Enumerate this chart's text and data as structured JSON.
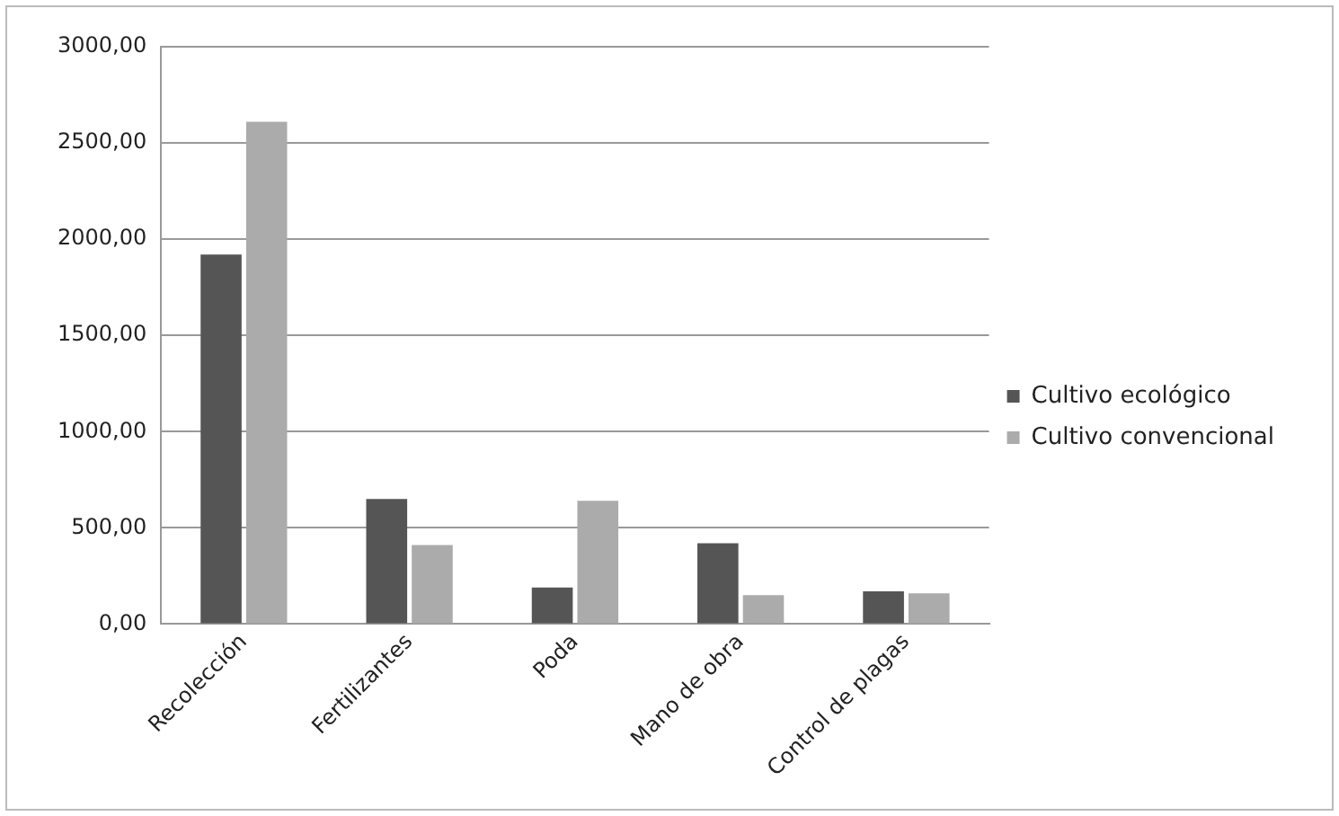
{
  "chart_data": {
    "type": "bar",
    "categories": [
      "Recolección",
      "Fertilizantes",
      "Poda",
      "Mano de obra",
      "Control de plagas"
    ],
    "series": [
      {
        "name": "Cultivo ecológico",
        "color": "#555555",
        "values": [
          1920,
          650,
          190,
          420,
          170
        ]
      },
      {
        "name": "Cultivo convencional",
        "color": "#ababab",
        "values": [
          2610,
          410,
          640,
          150,
          160
        ]
      }
    ],
    "ylim": [
      0,
      3000
    ],
    "yticks": [
      {
        "value": 0,
        "label": "0,00"
      },
      {
        "value": 500,
        "label": "500,00"
      },
      {
        "value": 1000,
        "label": "1000,00"
      },
      {
        "value": 1500,
        "label": "1500,00"
      },
      {
        "value": 2000,
        "label": "2000,00"
      },
      {
        "value": 2500,
        "label": "2500,00"
      },
      {
        "value": 3000,
        "label": "3000,00"
      }
    ],
    "grid": "y",
    "legend": "right"
  }
}
